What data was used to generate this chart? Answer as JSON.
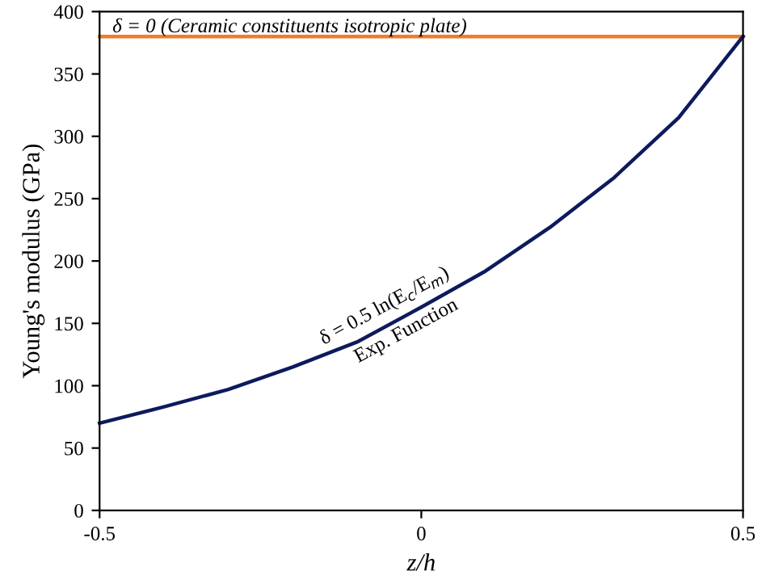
{
  "chart_data": {
    "type": "line",
    "xlabel": "z/h",
    "ylabel": "Young's modulus (GPa)",
    "x": [
      -0.5,
      -0.4,
      -0.3,
      -0.2,
      -0.1,
      0,
      0.1,
      0.2,
      0.3,
      0.4,
      0.5
    ],
    "series": [
      {
        "name": "δ = 0 (Ceramic constituents isotropic plate)",
        "color": "#f07c2c",
        "values": [
          380,
          380,
          380,
          380,
          380,
          380,
          380,
          380,
          380,
          380,
          380
        ]
      },
      {
        "name": "δ = 0.5 ln(E$_{c}$/E$_{m}$)",
        "color": "#0d1a5c",
        "values": [
          70,
          83,
          97,
          115,
          135,
          163,
          192,
          227,
          267,
          315,
          380
        ]
      }
    ],
    "annotations": [
      {
        "text": "Exp. Function",
        "x": -0.03,
        "y": 150
      }
    ],
    "xlim": [
      -0.5,
      0.5
    ],
    "ylim": [
      0,
      400
    ],
    "xticks": [
      -0.5,
      0,
      0.5
    ],
    "yticks": [
      0,
      50,
      100,
      150,
      200,
      250,
      300,
      350,
      400
    ],
    "grid": false,
    "legend": false,
    "marker": "none",
    "line_style": "solid"
  }
}
